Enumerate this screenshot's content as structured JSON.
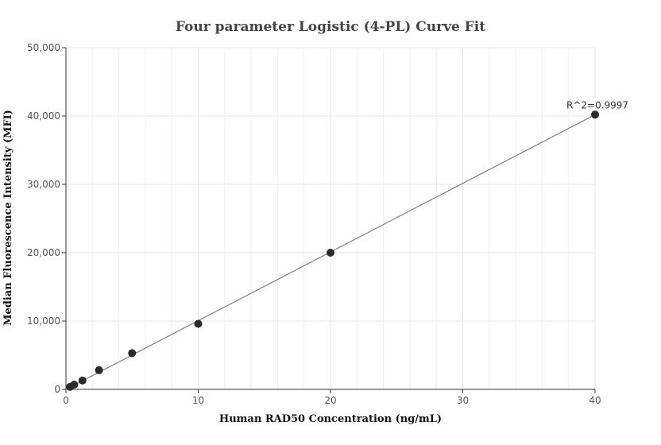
{
  "chart_data": {
    "type": "scatter",
    "title": "Four parameter Logistic (4-PL) Curve Fit",
    "xlabel": "Human RAD50 Concentration (ng/mL)",
    "ylabel": "Median Fluorescence Intensity (MFI)",
    "xlim": [
      0,
      40
    ],
    "ylim": [
      0,
      50000
    ],
    "x_ticks": [
      0,
      10,
      20,
      30,
      40
    ],
    "x_tick_labels": [
      "0",
      "10",
      "20",
      "30",
      "40"
    ],
    "y_ticks": [
      0,
      10000,
      20000,
      30000,
      40000,
      50000
    ],
    "y_tick_labels": [
      "0",
      "10,000",
      "20,000",
      "30,000",
      "40,000",
      "50,000"
    ],
    "grid": true,
    "legend": "none",
    "series": [
      {
        "points": [
          {
            "x": 0.3125,
            "y": 380
          },
          {
            "x": 0.625,
            "y": 700
          },
          {
            "x": 1.25,
            "y": 1300
          },
          {
            "x": 2.5,
            "y": 2800
          },
          {
            "x": 5,
            "y": 5300
          },
          {
            "x": 10,
            "y": 9600
          },
          {
            "x": 20,
            "y": 20000
          },
          {
            "x": 40,
            "y": 40200
          }
        ]
      }
    ],
    "fit_line": [
      {
        "x": 0,
        "y": 0
      },
      {
        "x": 40,
        "y": 40200
      }
    ],
    "annotations": [
      {
        "text": "R^2=0.9997",
        "x": 40,
        "y": 40200
      }
    ],
    "colors": {
      "points": "#2b2b2b",
      "fit_line": "#7f7f7f",
      "grid": "#e4e4ee"
    }
  }
}
